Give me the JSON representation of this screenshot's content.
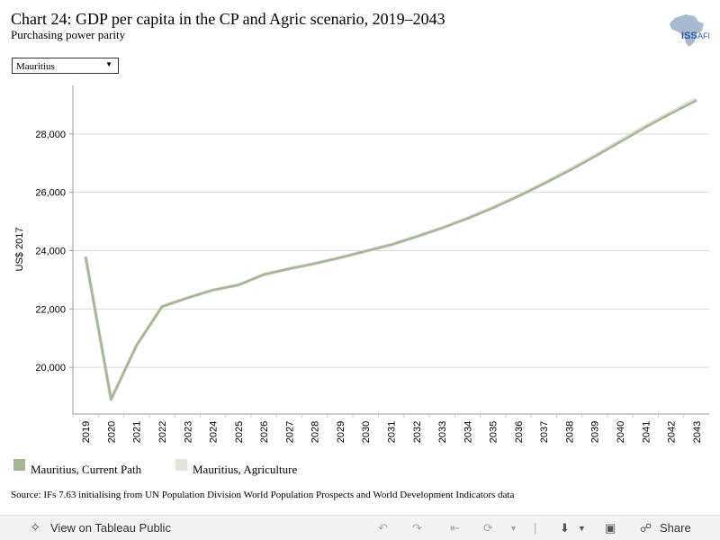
{
  "header": {
    "title": "Chart 24: GDP per capita in the CP and Agric scenario, 2019–2043",
    "subtitle": "Purchasing power parity",
    "logo_text": "ISS|AFI"
  },
  "filter": {
    "selected": "Mauritius"
  },
  "chart_data": {
    "type": "line",
    "x": [
      2019,
      2020,
      2021,
      2022,
      2023,
      2024,
      2025,
      2026,
      2027,
      2028,
      2029,
      2030,
      2031,
      2032,
      2033,
      2034,
      2035,
      2036,
      2037,
      2038,
      2039,
      2040,
      2041,
      2042,
      2043
    ],
    "series": [
      {
        "name": "Mauritius, Current Path",
        "color": "#a7b597",
        "values": [
          23800,
          18900,
          20750,
          22080,
          22380,
          22650,
          22820,
          23180,
          23380,
          23560,
          23760,
          23980,
          24200,
          24480,
          24770,
          25100,
          25460,
          25860,
          26290,
          26740,
          27220,
          27720,
          28230,
          28700,
          29150
        ]
      },
      {
        "name": "Mauritius, Agriculture",
        "color": "#dde0d6",
        "values": [
          23800,
          18900,
          20750,
          22080,
          22380,
          22650,
          22820,
          23180,
          23380,
          23560,
          23760,
          23980,
          24200,
          24480,
          24780,
          25110,
          25480,
          25880,
          26310,
          26770,
          27250,
          27760,
          28270,
          28740,
          29200
        ]
      }
    ],
    "ylabel": "US$ 2017",
    "xlabel": "",
    "ylim": [
      18400,
      29600
    ],
    "yticks": [
      20000,
      22000,
      24000,
      26000,
      28000
    ],
    "ytick_labels": [
      "20,000",
      "22,000",
      "24,000",
      "26,000",
      "28,000"
    ],
    "grid": true
  },
  "legend": {
    "items": [
      {
        "label": "Mauritius, Current Path",
        "color": "#a7b597"
      },
      {
        "label": "Mauritius, Agriculture",
        "color": "#e2e4dc"
      }
    ]
  },
  "source": "Source: IFs 7.63 initialising from UN Population Division World Population Prospects and World Development Indicators data",
  "toolbar": {
    "view_label": "View on Tableau Public",
    "share_label": "Share"
  }
}
